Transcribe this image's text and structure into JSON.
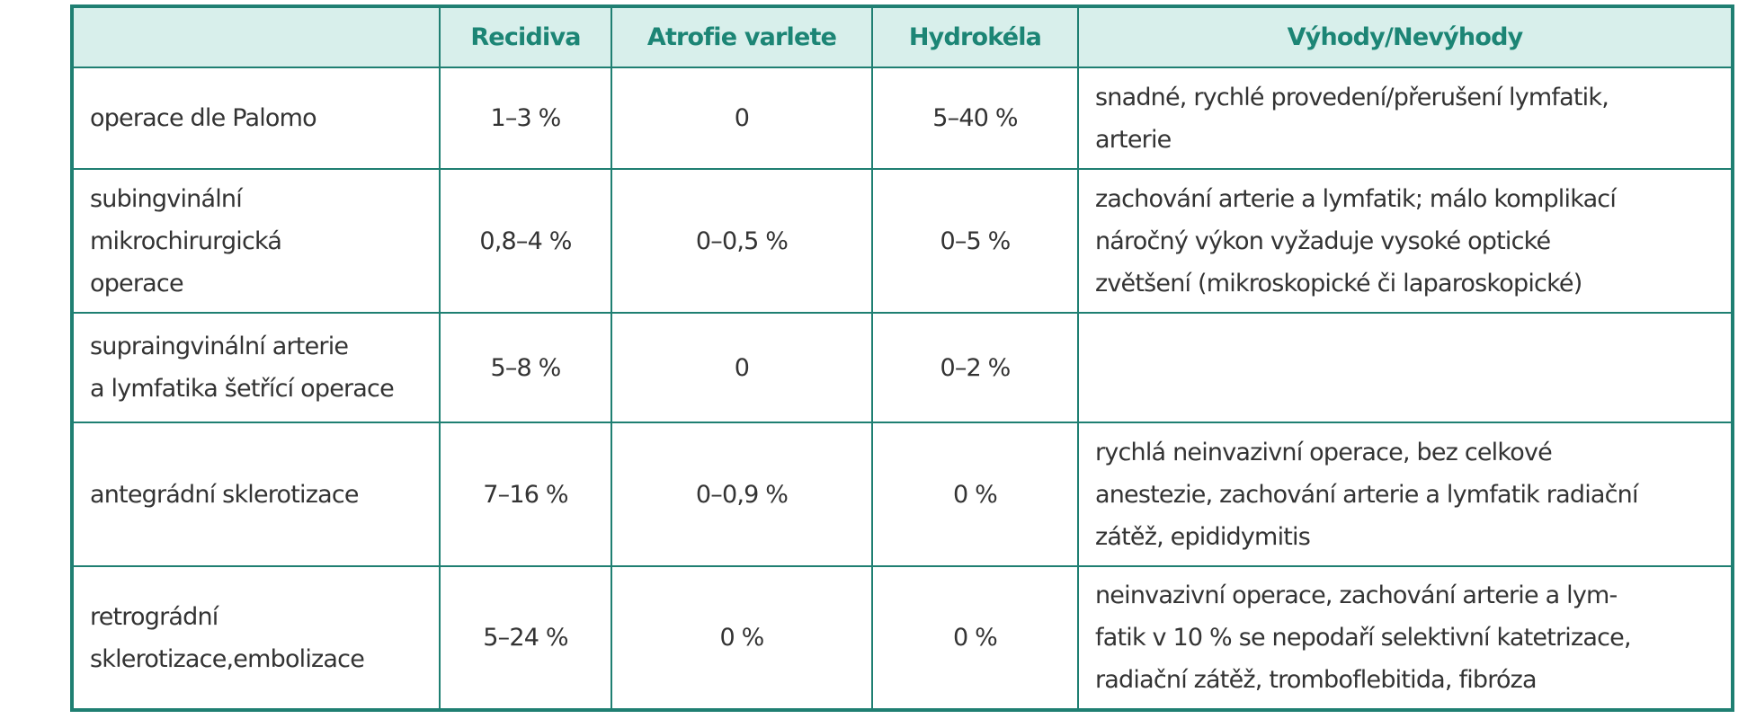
{
  "table": {
    "header": [
      "Recidiva",
      "Atrofie varlete",
      "Hydrokéla",
      "Výhody/Nevýhody"
    ],
    "rows": [
      [
        [
          "operace dle Palomo"
        ],
        [
          "1–3 %"
        ],
        [
          "0"
        ],
        [
          "5–40 %"
        ],
        [
          "snadné, rychlé provedení/přerušení lymfatik,",
          "arterie"
        ]
      ],
      [
        [
          "subingvinální",
          "mikrochirurgická",
          "operace"
        ],
        [
          "0,8–4 %"
        ],
        [
          "0–0,5 %"
        ],
        [
          "0–5 %"
        ],
        [
          "zachování arterie a lymfatik; málo komplikací",
          "náročný výkon vyžaduje vysoké optické",
          "zvětšení (mikroskopické či laparoskopické)"
        ]
      ],
      [
        [
          "supraingvinální arterie",
          "a lymfatika šetřící operace"
        ],
        [
          "5–8 %"
        ],
        [
          "0"
        ],
        [
          "0–2 %"
        ],
        []
      ],
      [
        [
          "antegrádní sklerotizace"
        ],
        [
          "7–16 %"
        ],
        [
          "0–0,9 %"
        ],
        [
          "0 %"
        ],
        [
          "rychlá neinvazivní operace, bez celkové",
          "anestezie, zachování arterie a lymfatik radiační",
          "zátěž, epididymitis"
        ]
      ],
      [
        [
          "retrográdní",
          "sklerotizace,embolizace"
        ],
        [
          "5–24 %"
        ],
        [
          "0 %"
        ],
        [
          "0 %"
        ],
        [
          "neinvazivní operace, zachování arterie a lym-",
          "fatik v 10 % se nepodaří selektivní katetrizace,",
          "radiační zátěž, tromboflebitida, fibróza"
        ]
      ]
    ]
  }
}
